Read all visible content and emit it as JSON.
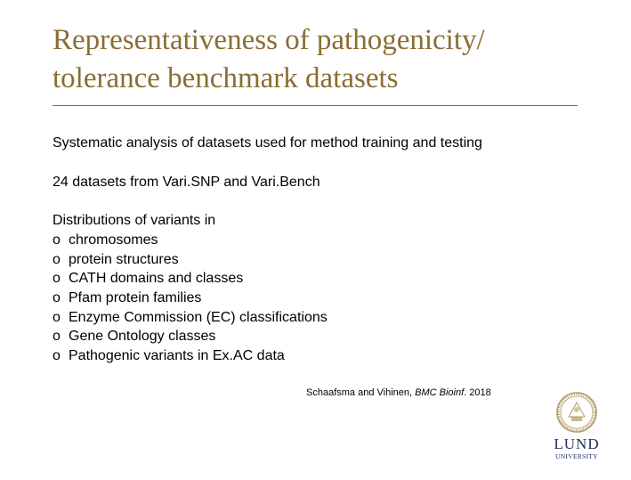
{
  "slide": {
    "title_line1": "Representativeness of pathogenicity/",
    "title_line2": "tolerance benchmark datasets",
    "para1": "Systematic analysis of datasets used for method training and testing",
    "para2": "24 datasets from Vari.SNP and Vari.Bench",
    "para3": "Distributions of variants in",
    "bullet_glyph": "o",
    "items": [
      "chromosomes",
      "protein structures",
      "CATH domains and classes",
      "Pfam protein families",
      "Enzyme Commission (EC) classifications",
      "Gene Ontology classes",
      "Pathogenic variants in Ex.AC data"
    ],
    "citation": {
      "authors": "Schaafsma and Vihinen, ",
      "journal": "BMC Bioinf",
      "year": ". 2018"
    },
    "logo": {
      "name": "LUND",
      "sub": "UNIVERSITY"
    }
  },
  "colors": {
    "title": "#8a6d34",
    "logo_blue": "#1f2d5a",
    "seal": "#b59b68"
  }
}
